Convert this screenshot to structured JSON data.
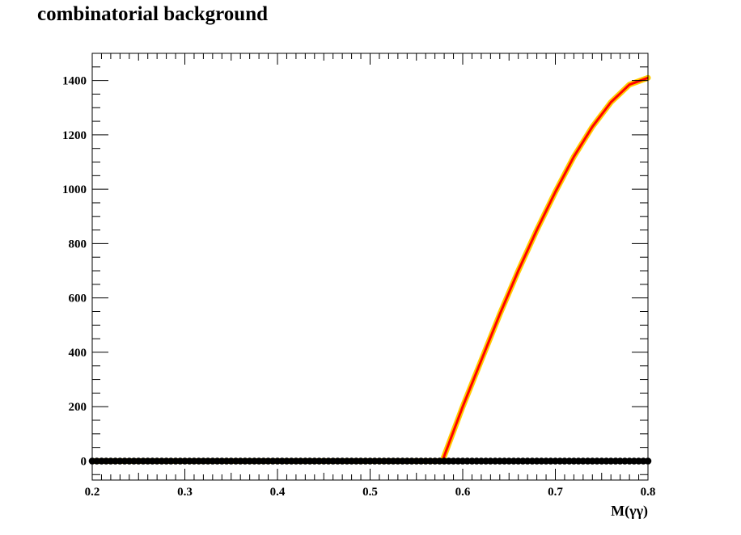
{
  "chart_data": {
    "type": "line",
    "title": "combinatorial background",
    "xlabel": "M(γγ)",
    "ylabel": "",
    "xlim": [
      0.2,
      0.8
    ],
    "ylim": [
      -70,
      1500
    ],
    "x_ticks": [
      "0.2",
      "0.3",
      "0.4",
      "0.5",
      "0.6",
      "0.7",
      "0.8"
    ],
    "y_ticks": [
      "0",
      "200",
      "400",
      "600",
      "800",
      "1000",
      "1200",
      "1400"
    ],
    "grid": false,
    "legend": "none",
    "colors": {
      "fit_line": "#ff0000",
      "error_band": "#ffcc00",
      "data_points": "#000000"
    },
    "series": [
      {
        "kind": "fit",
        "x": [
          0.2,
          0.578,
          0.6,
          0.62,
          0.64,
          0.66,
          0.68,
          0.7,
          0.72,
          0.74,
          0.76,
          0.78,
          0.8
        ],
        "y": [
          0,
          0,
          200,
          370,
          540,
          700,
          850,
          990,
          1120,
          1230,
          1320,
          1385,
          1410
        ]
      },
      {
        "kind": "data",
        "x_start": 0.2,
        "x_step": 0.005,
        "count": 121,
        "y": 0
      }
    ]
  }
}
